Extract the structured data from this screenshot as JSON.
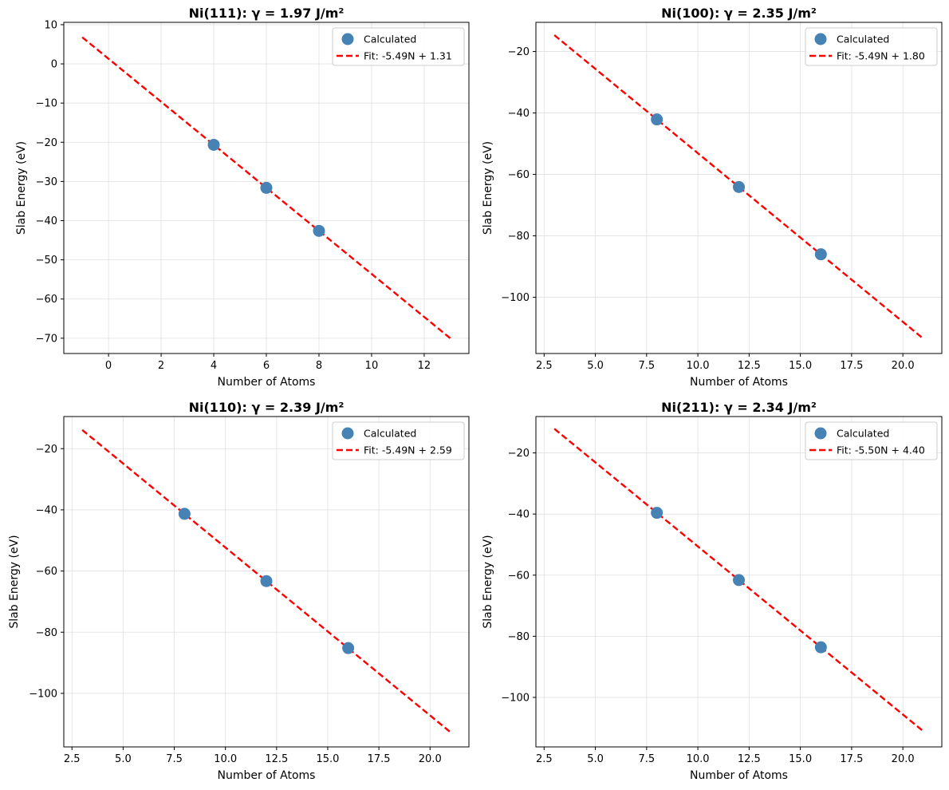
{
  "figure": {
    "colors": {
      "points": "#4682b4",
      "fit": "#ff0000",
      "grid": "#e0e0e0",
      "axes": "#000000"
    }
  },
  "chart_data": [
    {
      "type": "scatter",
      "title": "Ni(111): γ = 1.97 J/m²",
      "xlabel": "Number of Atoms",
      "ylabel": "Slab Energy (eV)",
      "xlim": [
        -1.7,
        13.7
      ],
      "ylim": [
        -73.9,
        10.6
      ],
      "xticks": [
        0,
        2,
        4,
        6,
        8,
        10,
        12
      ],
      "yticks": [
        10,
        0,
        -10,
        -20,
        -30,
        -40,
        -50,
        -60,
        -70
      ],
      "grid": true,
      "legend_position": "top-right",
      "series": [
        {
          "name": "Calculated",
          "kind": "points",
          "x": [
            4,
            6,
            8
          ],
          "y": [
            -20.65,
            -31.63,
            -42.61
          ]
        },
        {
          "name": "Fit: -5.49N + 1.31",
          "kind": "fit_line",
          "slope": -5.49,
          "intercept": 1.31,
          "x_range": [
            -1,
            13
          ]
        }
      ]
    },
    {
      "type": "scatter",
      "title": "Ni(100): γ = 2.35 J/m²",
      "xlabel": "Number of Atoms",
      "ylabel": "Slab Energy (eV)",
      "xlim": [
        2.1,
        21.9
      ],
      "ylim": [
        -118.3,
        -10.5
      ],
      "xticks": [
        2.5,
        5.0,
        7.5,
        10.0,
        12.5,
        15.0,
        17.5,
        20.0
      ],
      "yticks": [
        -20,
        -40,
        -60,
        -80,
        -100
      ],
      "grid": true,
      "legend_position": "top-right",
      "series": [
        {
          "name": "Calculated",
          "kind": "points",
          "x": [
            8,
            12,
            16
          ],
          "y": [
            -42.1,
            -64.1,
            -86.0
          ]
        },
        {
          "name": "Fit: -5.49N + 1.80",
          "kind": "fit_line",
          "slope": -5.49,
          "intercept": 1.8,
          "x_range": [
            3,
            21
          ]
        }
      ]
    },
    {
      "type": "scatter",
      "title": "Ni(110): γ = 2.39 J/m²",
      "xlabel": "Number of Atoms",
      "ylabel": "Slab Energy (eV)",
      "xlim": [
        2.1,
        21.9
      ],
      "ylim": [
        -117.5,
        -9.5
      ],
      "xticks": [
        2.5,
        5.0,
        7.5,
        10.0,
        12.5,
        15.0,
        17.5,
        20.0
      ],
      "yticks": [
        -20,
        -40,
        -60,
        -80,
        -100
      ],
      "grid": true,
      "legend_position": "top-right",
      "series": [
        {
          "name": "Calculated",
          "kind": "points",
          "x": [
            8,
            12,
            16
          ],
          "y": [
            -41.3,
            -63.3,
            -85.2
          ]
        },
        {
          "name": "Fit: -5.49N + 2.59",
          "kind": "fit_line",
          "slope": -5.49,
          "intercept": 2.59,
          "x_range": [
            3,
            21
          ]
        }
      ]
    },
    {
      "type": "scatter",
      "title": "Ni(211): γ = 2.34 J/m²",
      "xlabel": "Number of Atoms",
      "ylabel": "Slab Energy (eV)",
      "xlim": [
        2.1,
        21.9
      ],
      "ylim": [
        -116.2,
        -8.1
      ],
      "xticks": [
        2.5,
        5.0,
        7.5,
        10.0,
        12.5,
        15.0,
        17.5,
        20.0
      ],
      "yticks": [
        -20,
        -40,
        -60,
        -80,
        -100
      ],
      "grid": true,
      "legend_position": "top-right",
      "series": [
        {
          "name": "Calculated",
          "kind": "points",
          "x": [
            8,
            12,
            16
          ],
          "y": [
            -39.6,
            -61.6,
            -83.6
          ]
        },
        {
          "name": "Fit: -5.50N + 4.40",
          "kind": "fit_line",
          "slope": -5.5,
          "intercept": 4.4,
          "x_range": [
            3,
            21
          ]
        }
      ]
    }
  ]
}
